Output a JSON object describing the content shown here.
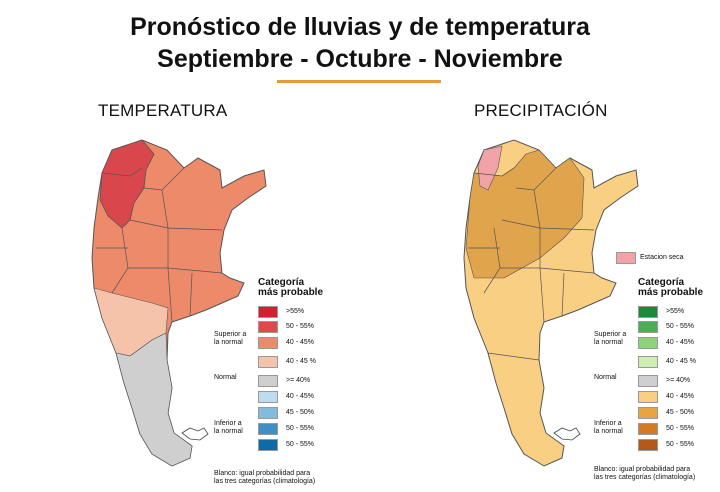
{
  "header": {
    "title_line1": "Pronóstico de lluvias y de temperatura",
    "title_line2": "Septiembre - Octubre - Noviembre"
  },
  "panels": [
    {
      "section_title": "TEMPERATURA",
      "legend_title_1": "Categoría",
      "legend_title_2": "más probable",
      "groups": [
        "Superior a\nla normal",
        "Normal",
        "Inferior a\nla normal"
      ],
      "swatches": [
        {
          "label": ">55%",
          "color": "#d2202e"
        },
        {
          "label": "50 - 55%",
          "color": "#e0494a"
        },
        {
          "label": "40 - 45%",
          "color": "#ec8a6a"
        },
        {
          "label": "40 - 45 %",
          "color": "#f5c2aa"
        },
        {
          "label": ">= 40%",
          "color": "#cfcfcf"
        },
        {
          "label": "40 - 45%",
          "color": "#bfdcee"
        },
        {
          "label": "45 - 50%",
          "color": "#84bbdd"
        },
        {
          "label": "50 - 55%",
          "color": "#3d8fc6"
        },
        {
          "label": "50 - 55%",
          "color": "#0f6aa8"
        }
      ],
      "footnote": "Blanco: igual probabilidad para\nlas tres categorías (climatología)"
    },
    {
      "section_title": "PRECIPITACIÓN",
      "estacion_label": "Estacion seca",
      "estacion_color": "#f2a3a8",
      "legend_title_1": "Categoría",
      "legend_title_2": "más probable",
      "groups": [
        "Superior a\nla normal",
        "Normal",
        "Inferior a\nla normal"
      ],
      "swatches": [
        {
          "label": ">55%",
          "color": "#1d8a3b"
        },
        {
          "label": "50 - 55%",
          "color": "#49b055"
        },
        {
          "label": "40 - 45%",
          "color": "#8dd37a"
        },
        {
          "label": "40 - 45 %",
          "color": "#cdeeb0"
        },
        {
          "label": ">= 40%",
          "color": "#cfcfcf"
        },
        {
          "label": "40 - 45%",
          "color": "#f8cf83"
        },
        {
          "label": "45 - 50%",
          "color": "#e9a441"
        },
        {
          "label": "50 - 55%",
          "color": "#d37a22"
        },
        {
          "label": "50 - 55%",
          "color": "#b5581a"
        }
      ],
      "footnote": "Blanco: igual probabilidad para\nlas tres categorías (climatología)"
    }
  ],
  "colors": {
    "accent_rule": "#e79a3c",
    "temp_dark": "#d9474d",
    "temp_mid": "#ec8a6a",
    "temp_light": "#f5c2aa",
    "temp_normal": "#cfcfcf",
    "prec_dark": "#e0a44c",
    "prec_light": "#f9cf84",
    "prec_dry": "#f2a3a8"
  }
}
